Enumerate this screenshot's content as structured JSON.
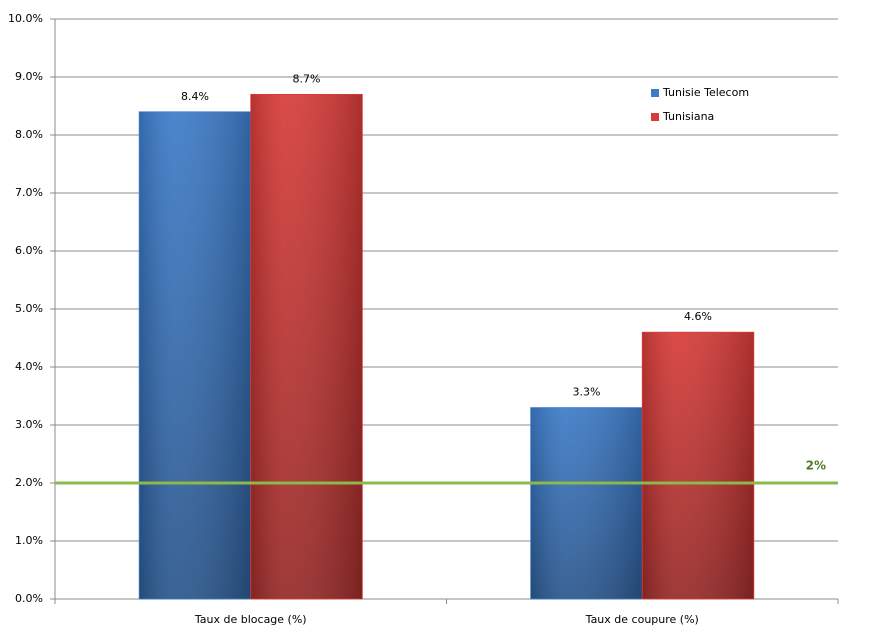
{
  "chart_data": {
    "type": "bar",
    "categories": [
      "Taux de blocage (%)",
      "Taux de coupure (%)"
    ],
    "series": [
      {
        "name": "Tunisie Telecom",
        "color": "#3c7bc8",
        "values": [
          8.4,
          3.3
        ],
        "value_labels": [
          "8.4%",
          "3.3%"
        ]
      },
      {
        "name": "Tunisiana",
        "color": "#d63b38",
        "values": [
          8.7,
          4.6
        ],
        "value_labels": [
          "8.7%",
          "4.6%"
        ]
      }
    ],
    "ylim": [
      0,
      10
    ],
    "yticks": [
      {
        "value": 0,
        "label": "0.0%"
      },
      {
        "value": 1,
        "label": "1.0%"
      },
      {
        "value": 2,
        "label": "2.0%"
      },
      {
        "value": 3,
        "label": "3.0%"
      },
      {
        "value": 4,
        "label": "4.0%"
      },
      {
        "value": 5,
        "label": "5.0%"
      },
      {
        "value": 6,
        "label": "6.0%"
      },
      {
        "value": 7,
        "label": "7.0%"
      },
      {
        "value": 8,
        "label": "8.0%"
      },
      {
        "value": 9,
        "label": "9.0%"
      },
      {
        "value": 10,
        "label": "10.0%"
      }
    ],
    "grid": true,
    "legend": "upper-right",
    "reference_line": {
      "value": 2,
      "label": "2%",
      "color": "#8db84a"
    }
  }
}
